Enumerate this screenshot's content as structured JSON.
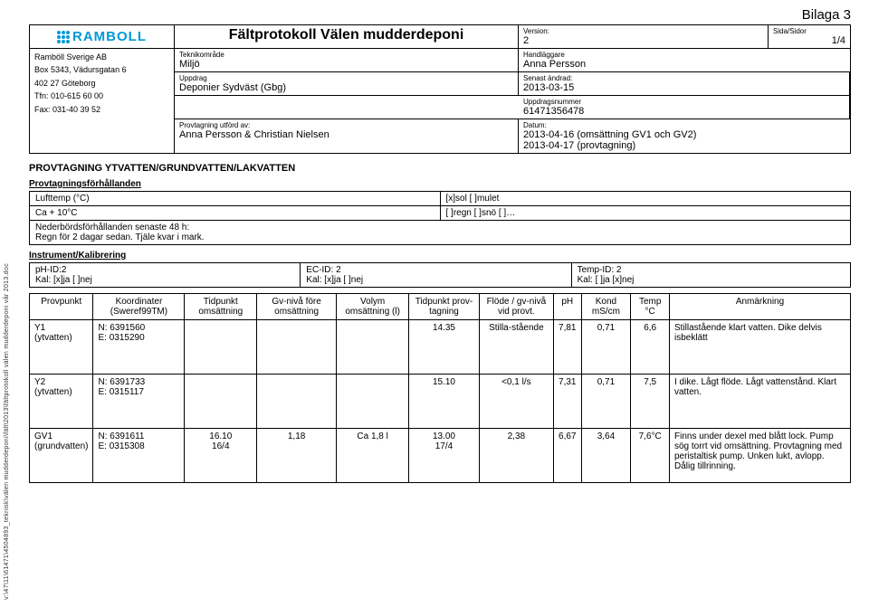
{
  "bilaga": "Bilaga 3",
  "logo_text": "RAMBOLL",
  "doc_title": "Fältprotokoll Välen mudderdeponi",
  "company": {
    "name": "Ramböll Sverige AB",
    "addr1": "Box 5343, Vädursgatan 6",
    "addr2": "402 27 Göteborg",
    "tel": "Tfn: 010-615 60 00",
    "fax": "Fax: 031-40 39 52"
  },
  "header": {
    "teknikomrade_lbl": "Teknikområde",
    "teknikomrade": "Miljö",
    "uppdrag_lbl": "Uppdrag",
    "uppdrag": "Deponier Sydväst (Gbg)",
    "provtagning_lbl": "Provtagning utförd av:",
    "provtagning": "Anna Persson & Christian Nielsen",
    "version_lbl": "Version:",
    "version": "2",
    "sida_lbl": "Sida/Sidor",
    "sida": "1/4",
    "handlaggare_lbl": "Handläggare",
    "handlaggare": "Anna Persson",
    "senast_lbl": "Senast ändrad:",
    "senast": "2013-03-15",
    "uppdragsnr_lbl": "Uppdragsnummer",
    "uppdragsnr": "61471356478",
    "datum_lbl": "Datum:",
    "datum1": "2013-04-16 (omsättning GV1 och GV2)",
    "datum2": "2013-04-17 (provtagning)"
  },
  "section1_title": "PROVTAGNING YTVATTEN/GRUNDVATTEN/LAKVATTEN",
  "cond_title": "Provtagningsförhållanden",
  "cond": {
    "luft_lbl": "Lufttemp (°C)",
    "luft_val": "Ca + 10°C",
    "sol": "[x]sol  [ ]mulet",
    "regn": "[ ]regn [ ]snö [ ]…",
    "neder_lbl": "Nederbördsförhållanden senaste 48 h:",
    "neder_val": "Regn för 2 dagar sedan. Tjäle kvar i mark."
  },
  "inst_title": "Instrument/Kalibrering",
  "inst": {
    "ph": "pH-ID:2",
    "ph_kal": "Kal: [x]ja  [ ]nej",
    "ec": "EC-ID: 2",
    "ec_kal": "Kal: [x]ja  [ ]nej",
    "temp": "Temp-ID: 2",
    "temp_kal": "Kal: [ ]ja  [x]nej"
  },
  "columns": {
    "c1": "Provpunkt",
    "c2": "Koordinater (Sweref99TM)",
    "c3": "Tidpunkt omsättning",
    "c4": "Gv-nivå före omsättning",
    "c5": "Volym omsättning (l)",
    "c6": "Tidpunkt prov-tagning",
    "c7": "Flöde / gv-nivå vid provt.",
    "c8": "pH",
    "c9": "Kond mS/cm",
    "c10": "Temp °C",
    "c11": "Anmärkning"
  },
  "rows": [
    {
      "p": "Y1\n(ytvatten)",
      "coord": "N: 6391560\nE: 0315290",
      "t_oms": "",
      "gv_fore": "",
      "vol": "",
      "t_prov": "14.35",
      "flode": "Stilla-stående",
      "ph": "7,81",
      "kond": "0,71",
      "temp": "6,6",
      "anm": "Stillastående klart vatten. Dike delvis isbeklätt"
    },
    {
      "p": "Y2\n(ytvatten)",
      "coord": "N: 6391733\nE: 0315117",
      "t_oms": "",
      "gv_fore": "",
      "vol": "",
      "t_prov": "15.10",
      "flode": "<0,1 l/s",
      "ph": "7,31",
      "kond": "0,71",
      "temp": "7,5",
      "anm": "I dike. Lågt flöde. Lågt vattenstånd. Klart vatten."
    },
    {
      "p": "GV1\n(grundvatten)",
      "coord": "N: 6391611\nE: 0315308",
      "t_oms": "16.10\n16/4",
      "gv_fore": "1,18",
      "vol": "Ca 1,8 l",
      "t_prov": "13.00\n17/4",
      "flode": "2,38",
      "ph": "6,67",
      "kond": "3,64",
      "temp": "7,6°C",
      "anm": "Finns under dexel med blått lock. Pump sög torrt vid omsättning. Provtagning med peristaltisk pump. Unken lukt, avlopp. Dålig tillrinning."
    }
  ],
  "side_path": "v:\\47\\11\\61471\\4504893_teknisk\\välen mudderdeponi\\fält\\2013\\fältprotokoll välen mudderdeponi vår 2013.doc"
}
